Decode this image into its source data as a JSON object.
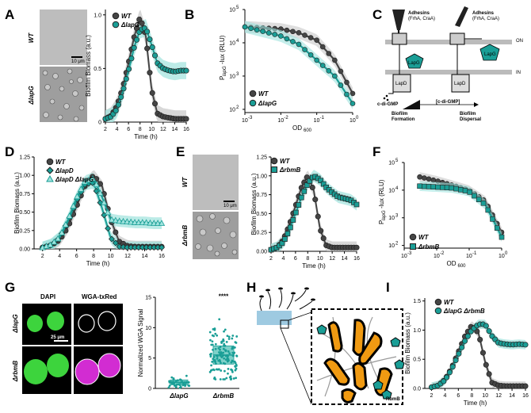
{
  "panels": {
    "A": "A",
    "B": "B",
    "C": "C",
    "D": "D",
    "E": "E",
    "F": "F",
    "G": "G",
    "H": "H",
    "I": "I"
  },
  "labels": {
    "time": "Time (h)",
    "biofilm": "Biofilm Biomass (a.u.)",
    "plux": "P",
    "plux_sub": "lapG",
    "plux_rest": "-lux (RLU)",
    "od": "OD",
    "od_sub": "600",
    "scale_10": "10 μm",
    "scale_25": "25 μm",
    "wga": "Normalized WGA Signal",
    "signif": "****"
  },
  "strains": {
    "wt": "WT",
    "lapG": "ΔlapG",
    "lapD": "ΔlapD",
    "lapDlapG": "ΔlapD ΔlapG",
    "rbmB": "ΔrbmB",
    "lapGrbmB": "ΔlapG ΔrbmB"
  },
  "schematic_c": {
    "adh_left": "Adhesins",
    "adh_left2": "(FrhA, CraA)",
    "adh_right": "Adhesins",
    "adh_right2": "(FrhA, CraA)",
    "on": "ON",
    "in": "IN",
    "lapd1": "LapD",
    "lapd2": "LapD",
    "lapg1": "LapG",
    "lapg2": "LapG",
    "cdigmp": "c-di-GMP",
    "gradient": "[c-di-GMP]",
    "form1": "Biofilm",
    "form2": "Formation",
    "disp1": "Biofilm",
    "disp2": "Dispersal"
  },
  "micro_g": {
    "dapi": "DAPI",
    "wga": "WGA-txRed"
  },
  "schematic_h": {
    "rbmb": "RbmB"
  },
  "colors": {
    "wt": "#454545",
    "mutant": "#1a9e96",
    "ribbon_wt": "#c8c8c8",
    "ribbon_mut": "#9fe3dd",
    "cell": "#f09a12",
    "green": "#3dd43d",
    "magenta": "#d22cd2"
  },
  "chart_data": [
    {
      "panel": "A",
      "type": "line",
      "xlabel": "Time (h)",
      "ylabel": "Biofilm Biomass (a.u.)",
      "xlim": [
        2,
        16
      ],
      "ylim": [
        0,
        1.05
      ],
      "x": [
        2,
        3,
        4,
        5,
        6,
        7,
        8,
        9,
        10,
        11,
        12,
        13,
        14,
        15,
        16
      ],
      "series": [
        {
          "name": "WT",
          "values": [
            0.03,
            0.06,
            0.15,
            0.32,
            0.55,
            0.8,
            0.98,
            0.8,
            0.3,
            0.08,
            0.05,
            0.04,
            0.03,
            0.03,
            0.03
          ]
        },
        {
          "name": "ΔlapG",
          "values": [
            0.03,
            0.05,
            0.12,
            0.28,
            0.48,
            0.7,
            0.86,
            0.88,
            0.72,
            0.55,
            0.5,
            0.48,
            0.47,
            0.48,
            0.48
          ]
        }
      ]
    },
    {
      "panel": "B",
      "type": "line",
      "xlabel": "OD600",
      "ylabel": "PlapG-lux (RLU)",
      "xscale": "log",
      "yscale": "log",
      "xlim": [
        0.001,
        1
      ],
      "ylim": [
        80,
        100000
      ],
      "x": [
        0.001,
        0.003,
        0.01,
        0.03,
        0.1,
        0.3,
        1
      ],
      "series": [
        {
          "name": "WT",
          "values": [
            30000,
            28000,
            26000,
            20000,
            12000,
            3000,
            300
          ]
        },
        {
          "name": "ΔlapG",
          "values": [
            30000,
            22000,
            16000,
            9000,
            3000,
            1000,
            150
          ]
        }
      ]
    },
    {
      "panel": "D",
      "type": "line",
      "xlabel": "Time (h)",
      "ylabel": "Biofilm Biomass (a.u.)",
      "xlim": [
        1,
        16
      ],
      "ylim": [
        0,
        1.25
      ],
      "x": [
        2,
        3,
        4,
        5,
        6,
        7,
        8,
        9,
        10,
        11,
        12,
        13,
        14,
        15,
        16
      ],
      "series": [
        {
          "name": "WT",
          "values": [
            0.02,
            0.05,
            0.12,
            0.3,
            0.58,
            0.86,
            1.0,
            0.85,
            0.4,
            0.1,
            0.04,
            0.03,
            0.03,
            0.03,
            0.03
          ]
        },
        {
          "name": "ΔlapD",
          "values": [
            0.02,
            0.05,
            0.15,
            0.38,
            0.66,
            0.88,
            0.9,
            0.55,
            0.15,
            0.03,
            0.02,
            0.02,
            0.02,
            0.02,
            0.02
          ]
        },
        {
          "name": "ΔlapD ΔlapG",
          "values": [
            0.02,
            0.06,
            0.16,
            0.4,
            0.7,
            0.92,
            0.96,
            0.7,
            0.4,
            0.38,
            0.37,
            0.36,
            0.36,
            0.35,
            0.35
          ]
        }
      ]
    },
    {
      "panel": "E",
      "type": "line",
      "xlabel": "Time (h)",
      "ylabel": "Biofilm Biomass (a.u.)",
      "xlim": [
        2,
        16
      ],
      "ylim": [
        0,
        1.25
      ],
      "x": [
        2,
        3,
        4,
        5,
        6,
        7,
        8,
        9,
        10,
        11,
        12,
        13,
        14,
        15,
        16
      ],
      "series": [
        {
          "name": "WT",
          "values": [
            0.02,
            0.05,
            0.15,
            0.35,
            0.6,
            0.85,
            1.0,
            0.8,
            0.3,
            0.08,
            0.05,
            0.05,
            0.05,
            0.05,
            0.05
          ]
        },
        {
          "name": "ΔrbmB",
          "values": [
            0.02,
            0.05,
            0.12,
            0.28,
            0.5,
            0.72,
            0.9,
            1.0,
            0.95,
            0.85,
            0.78,
            0.72,
            0.7,
            0.68,
            0.62
          ]
        }
      ]
    },
    {
      "panel": "F",
      "type": "line",
      "xlabel": "OD600",
      "ylabel": "PlapG-lux (RLU)",
      "xscale": "log",
      "yscale": "log",
      "xlim": [
        0.001,
        1
      ],
      "ylim": [
        80,
        100000
      ],
      "x": [
        0.003,
        0.01,
        0.03,
        0.1,
        0.3,
        1
      ],
      "series": [
        {
          "name": "WT",
          "values": [
            30000,
            22000,
            15000,
            10000,
            4000,
            300
          ]
        },
        {
          "name": "ΔrbmB",
          "values": [
            14000,
            13000,
            12000,
            9000,
            3000,
            200
          ]
        }
      ]
    },
    {
      "panel": "G",
      "type": "scatter",
      "ylabel": "Normalized WGA Signal",
      "categories": [
        "ΔlapG",
        "ΔrbmB"
      ],
      "ylim": [
        0,
        15
      ],
      "boxes": [
        {
          "q1": 0.6,
          "median": 1.0,
          "q3": 1.4
        },
        {
          "q1": 4.0,
          "median": 5.5,
          "q3": 7.0
        }
      ]
    },
    {
      "panel": "I",
      "type": "line",
      "xlabel": "Time (h)",
      "ylabel": "Biofilm Biomass (a.u.)",
      "xlim": [
        1,
        16
      ],
      "ylim": [
        0,
        1.55
      ],
      "x": [
        2,
        3,
        4,
        5,
        6,
        7,
        8,
        9,
        10,
        11,
        12,
        13,
        14,
        15,
        16
      ],
      "series": [
        {
          "name": "WT",
          "values": [
            0.02,
            0.05,
            0.15,
            0.35,
            0.62,
            0.9,
            1.08,
            0.95,
            0.45,
            0.1,
            0.05,
            0.04,
            0.04,
            0.04,
            0.04
          ]
        },
        {
          "name": "ΔlapG ΔrbmB",
          "values": [
            0.02,
            0.05,
            0.14,
            0.33,
            0.58,
            0.82,
            1.0,
            1.1,
            1.1,
            0.9,
            0.78,
            0.76,
            0.75,
            0.76,
            0.75
          ]
        }
      ]
    }
  ]
}
